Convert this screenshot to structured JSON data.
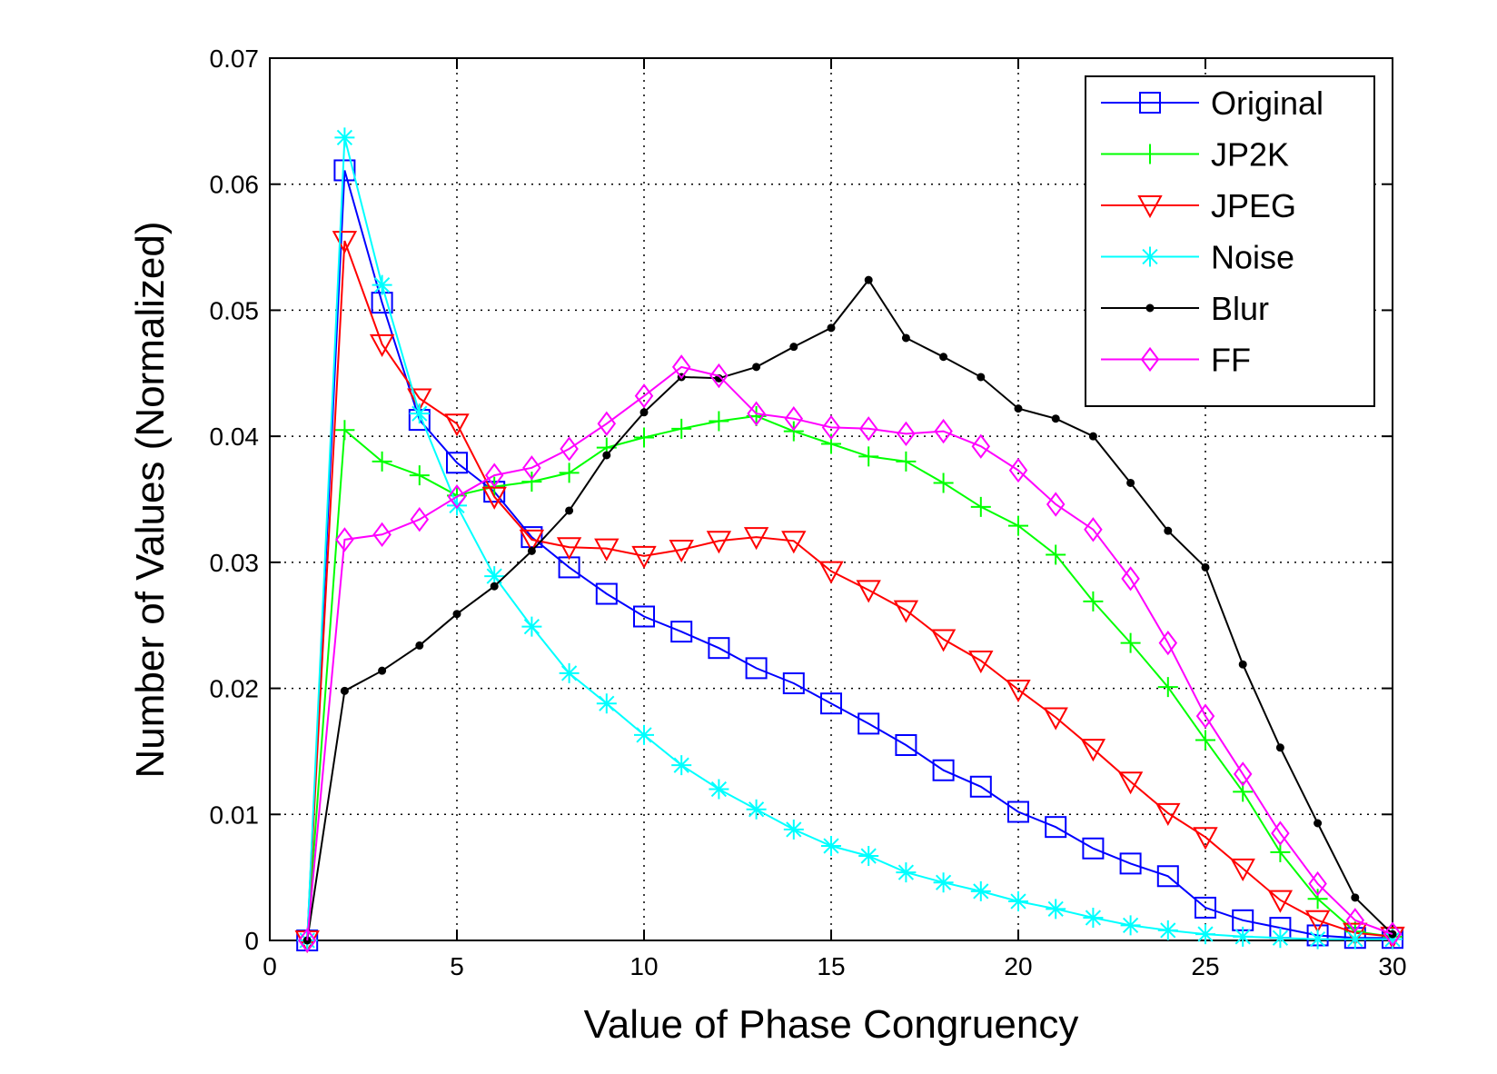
{
  "chart_data": {
    "type": "line",
    "title": "",
    "xlabel": "Value of Phase Congruency",
    "ylabel": "Number of Values (Normalized)",
    "xlim": [
      0,
      30
    ],
    "ylim": [
      0,
      0.07
    ],
    "xticks": [
      "0",
      "5",
      "10",
      "15",
      "20",
      "25",
      "30"
    ],
    "yticks": [
      "0",
      "0.01",
      "0.02",
      "0.03",
      "0.04",
      "0.05",
      "0.06",
      "0.07"
    ],
    "grid": true,
    "legend_position": "top-right",
    "x": [
      1,
      2,
      3,
      4,
      5,
      6,
      7,
      8,
      9,
      10,
      11,
      12,
      13,
      14,
      15,
      16,
      17,
      18,
      19,
      20,
      21,
      22,
      23,
      24,
      25,
      26,
      27,
      28,
      29,
      30
    ],
    "series": [
      {
        "name": "Original",
        "color": "#0000ff",
        "marker": "square",
        "values": [
          0,
          0.0611,
          0.0506,
          0.0413,
          0.0379,
          0.0356,
          0.032,
          0.0296,
          0.0275,
          0.0257,
          0.0245,
          0.0232,
          0.0216,
          0.0204,
          0.0188,
          0.0172,
          0.0155,
          0.0135,
          0.0122,
          0.0102,
          0.009,
          0.0073,
          0.0061,
          0.0051,
          0.0026,
          0.0016,
          0.001,
          0.0004,
          0.0002,
          0.0002
        ]
      },
      {
        "name": "JP2K",
        "color": "#00ff00",
        "marker": "plus",
        "values": [
          0,
          0.0405,
          0.038,
          0.0369,
          0.0353,
          0.036,
          0.0364,
          0.0371,
          0.0391,
          0.0399,
          0.0406,
          0.0412,
          0.0416,
          0.0404,
          0.0394,
          0.0384,
          0.038,
          0.0363,
          0.0344,
          0.0329,
          0.0306,
          0.0269,
          0.0236,
          0.0201,
          0.0159,
          0.0118,
          0.007,
          0.0033,
          0.0007,
          0.0003
        ]
      },
      {
        "name": "JPEG",
        "color": "#ff0000",
        "marker": "triangle-down",
        "values": [
          0,
          0.0555,
          0.0473,
          0.043,
          0.041,
          0.0352,
          0.0318,
          0.0312,
          0.0311,
          0.0305,
          0.031,
          0.0317,
          0.032,
          0.0317,
          0.0293,
          0.0278,
          0.0262,
          0.0239,
          0.0222,
          0.0199,
          0.0177,
          0.0152,
          0.0126,
          0.0101,
          0.0082,
          0.0057,
          0.0032,
          0.0016,
          0.0006,
          0.0003
        ]
      },
      {
        "name": "Noise",
        "color": "#00ffff",
        "marker": "star",
        "values": [
          0,
          0.0637,
          0.052,
          0.0418,
          0.0345,
          0.0289,
          0.0249,
          0.0212,
          0.0188,
          0.0163,
          0.0139,
          0.012,
          0.0104,
          0.0088,
          0.0075,
          0.0067,
          0.0054,
          0.0046,
          0.0039,
          0.0031,
          0.0025,
          0.0018,
          0.0012,
          0.0008,
          0.0005,
          0.0003,
          0.0002,
          0.0001,
          0.0001,
          0.0001
        ]
      },
      {
        "name": "Blur",
        "color": "#000000",
        "marker": "dot",
        "values": [
          0,
          0.0198,
          0.0214,
          0.0234,
          0.0259,
          0.0281,
          0.0309,
          0.0341,
          0.0385,
          0.0419,
          0.0447,
          0.0446,
          0.0455,
          0.0471,
          0.0486,
          0.0524,
          0.0478,
          0.0463,
          0.0447,
          0.0422,
          0.0414,
          0.04,
          0.0363,
          0.0325,
          0.0296,
          0.0219,
          0.0153,
          0.0093,
          0.0034,
          0.0005
        ]
      },
      {
        "name": "FF",
        "color": "#ff00ff",
        "marker": "diamond",
        "values": [
          0,
          0.0318,
          0.0322,
          0.0334,
          0.0352,
          0.0369,
          0.0375,
          0.039,
          0.041,
          0.0432,
          0.0455,
          0.0448,
          0.0418,
          0.0414,
          0.0407,
          0.0406,
          0.0402,
          0.0404,
          0.0392,
          0.0373,
          0.0346,
          0.0326,
          0.0287,
          0.0236,
          0.0178,
          0.0132,
          0.0085,
          0.0045,
          0.0016,
          0.0005
        ]
      }
    ]
  }
}
